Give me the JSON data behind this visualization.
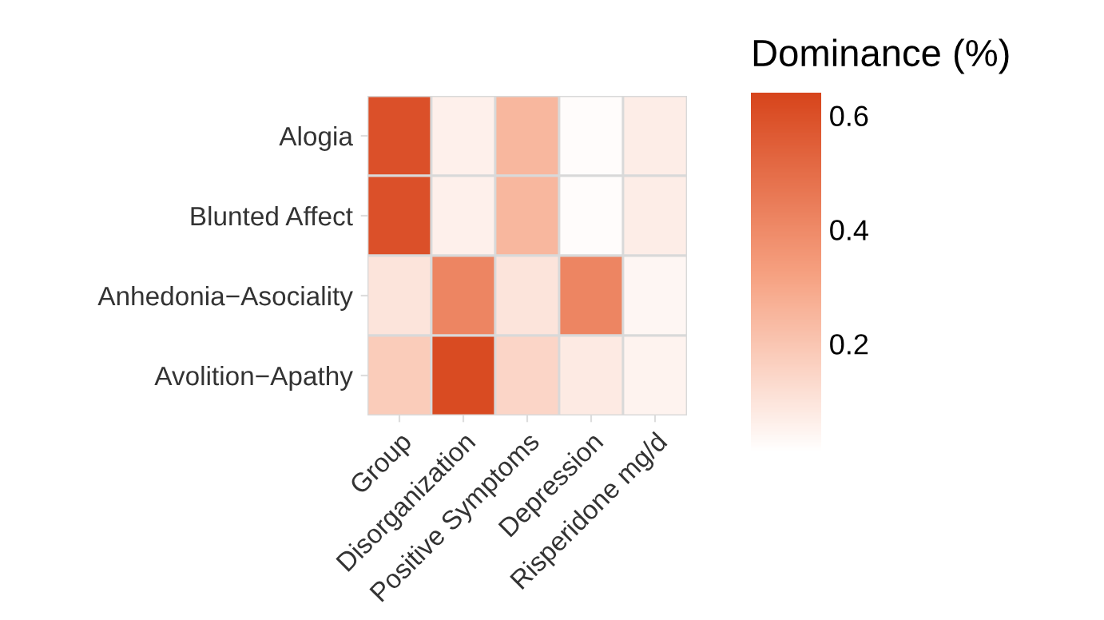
{
  "chart_data": {
    "type": "heatmap",
    "clabel": "Dominance (%)",
    "categories": [
      "Group",
      "Disorganization",
      "Positive Symptoms",
      "Depression",
      "Risperidone mg/d"
    ],
    "y_categories": [
      "Alogia",
      "Blunted Affect",
      "Anhedonia−Asociality",
      "Avolition−Apathy"
    ],
    "cells": [
      [
        0.6,
        0.06,
        0.25,
        0.02,
        0.07
      ],
      [
        0.6,
        0.06,
        0.25,
        0.02,
        0.07
      ],
      [
        0.1,
        0.42,
        0.1,
        0.42,
        0.04
      ],
      [
        0.18,
        0.62,
        0.15,
        0.08,
        0.05
      ]
    ],
    "colors": [
      "#ffffff",
      "#f6a080",
      "#d7451c"
    ],
    "clim": [
      0.01,
      0.64
    ],
    "cticks": [
      0.2,
      0.4,
      0.6
    ]
  }
}
